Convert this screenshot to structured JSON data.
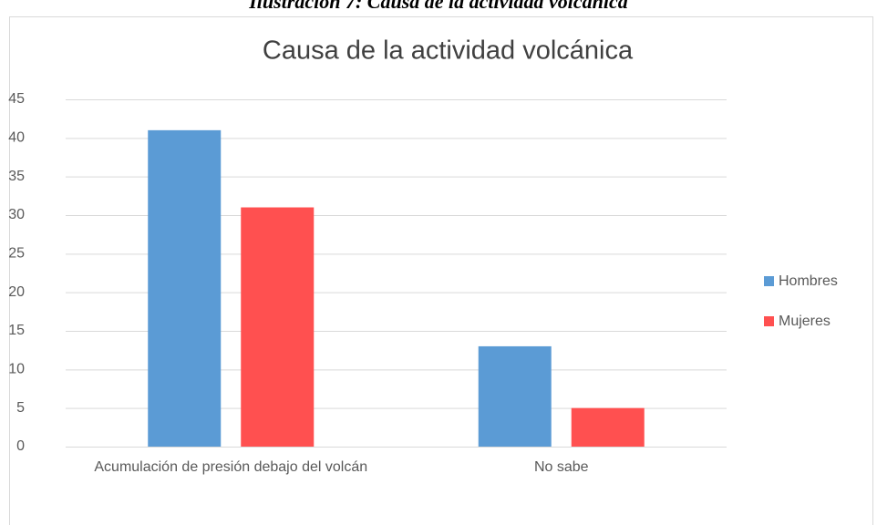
{
  "caption": "Ilustración 7: Causa de la actividad volcánica",
  "chart_data": {
    "type": "bar",
    "title": "Causa de la actividad volcánica",
    "categories": [
      "Acumulación de presión debajo del volcán",
      "No sabe"
    ],
    "series": [
      {
        "name": "Hombres",
        "color": "#5b9bd5",
        "values": [
          41,
          13
        ]
      },
      {
        "name": "Mujeres",
        "color": "#ff5050",
        "values": [
          31,
          5
        ]
      }
    ],
    "ylim": [
      0,
      45
    ],
    "yticks": [
      0,
      5,
      10,
      15,
      20,
      25,
      30,
      35,
      40,
      45
    ],
    "grid": true,
    "legend": "right"
  }
}
